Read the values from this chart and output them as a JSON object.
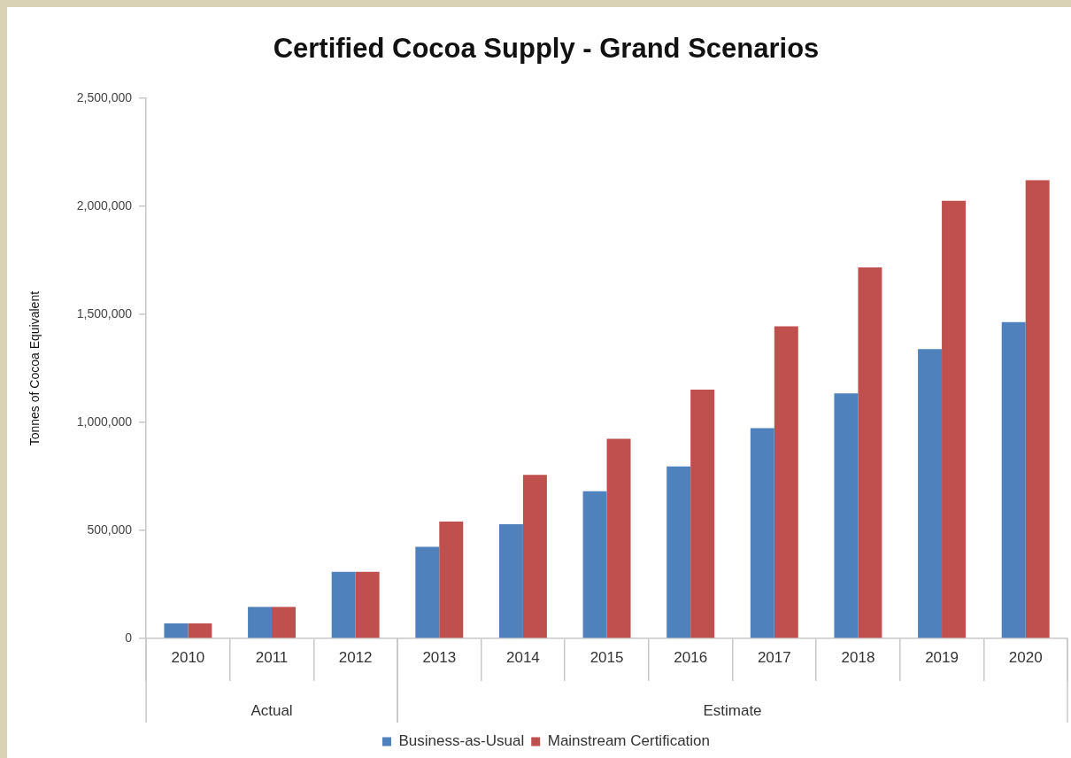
{
  "chart_data": {
    "type": "bar",
    "title": "Certified Cocoa Supply - Grand Scenarios",
    "ylabel": "Tonnes of Cocoa Equivalent",
    "categories": [
      "2010",
      "2011",
      "2012",
      "2013",
      "2014",
      "2015",
      "2016",
      "2017",
      "2018",
      "2019",
      "2020"
    ],
    "series": [
      {
        "name": "Business-as-Usual",
        "color": "#4f81bd",
        "values": [
          70000,
          146000,
          308000,
          424000,
          529000,
          682000,
          796000,
          974000,
          1135000,
          1340000,
          1465000
        ]
      },
      {
        "name": "Mainstream Certification",
        "color": "#c0504d",
        "values": [
          70000,
          146000,
          308000,
          541000,
          757000,
          924000,
          1152000,
          1445000,
          1718000,
          2026000,
          2122000
        ]
      }
    ],
    "ylim": [
      0,
      2500000
    ],
    "yticks": [
      0,
      {
        "value": 500000,
        "label": "500,000"
      },
      {
        "value": 1000000,
        "label": "1,000,000"
      },
      {
        "value": 1500000,
        "label": "1,500,000"
      },
      {
        "value": 2000000,
        "label": "2,000,000"
      },
      {
        "value": 2500000,
        "label": "2,500,000"
      }
    ],
    "annotations": [
      "Actual",
      "Estimate"
    ],
    "grid": false,
    "legend": "bottom"
  }
}
